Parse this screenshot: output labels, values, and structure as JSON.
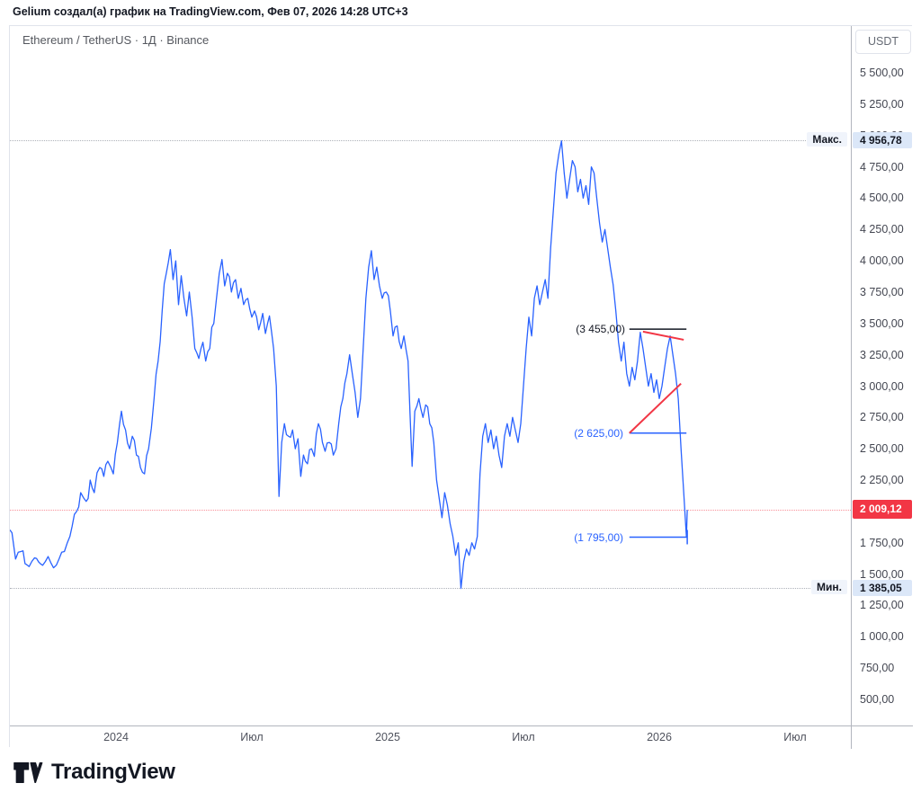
{
  "header": {
    "attribution": "Gelium создал(а) график на TradingView.com, Фев 07, 2026 14:28 UTC+3"
  },
  "chart": {
    "title": "Ethereum / TetherUS · 1Д · Binance",
    "currency_button": "USDT"
  },
  "footer": {
    "logo_text": "TradingView"
  },
  "colors": {
    "series_line": "#2962FF",
    "last_price_badge": "#F23645",
    "highlight_badge_bg": "#dbe7f8",
    "trend_red": "#F23645",
    "level_dark": "#131722"
  },
  "chart_data": {
    "type": "line",
    "title": "Ethereum / TetherUS",
    "interval": "1Д",
    "exchange": "Binance",
    "quote": "USDT",
    "x_axis": {
      "ticks": [
        {
          "label": "2024",
          "t": 2024
        },
        {
          "label": "Июл",
          "t": 2024.5
        },
        {
          "label": "2025",
          "t": 2025
        },
        {
          "label": "Июл",
          "t": 2025.5
        },
        {
          "label": "2026",
          "t": 2026
        },
        {
          "label": "Июл",
          "t": 2026.5
        }
      ]
    },
    "y_axis": {
      "range": [
        500,
        5500
      ],
      "step": 250,
      "ticks": [
        {
          "label": "5 500,00",
          "price": 5500
        },
        {
          "label": "5 250,00",
          "price": 5250
        },
        {
          "label": "5 000,00",
          "price": 5000
        },
        {
          "label": "4 750,00",
          "price": 4750
        },
        {
          "label": "4 500,00",
          "price": 4500
        },
        {
          "label": "4 250,00",
          "price": 4250
        },
        {
          "label": "4 000,00",
          "price": 4000
        },
        {
          "label": "3 750,00",
          "price": 3750
        },
        {
          "label": "3 500,00",
          "price": 3500
        },
        {
          "label": "3 250,00",
          "price": 3250
        },
        {
          "label": "3 000,00",
          "price": 3000
        },
        {
          "label": "2 750,00",
          "price": 2750
        },
        {
          "label": "2 500,00",
          "price": 2500
        },
        {
          "label": "2 250,00",
          "price": 2250
        },
        {
          "label": "2 000,00",
          "price": 2000
        },
        {
          "label": "1 750,00",
          "price": 1750
        },
        {
          "label": "1 500,00",
          "price": 1500
        },
        {
          "label": "1 250,00",
          "price": 1250
        },
        {
          "label": "1 000,00",
          "price": 1000
        },
        {
          "label": "750,00",
          "price": 750
        },
        {
          "label": "500,00",
          "price": 500
        }
      ]
    },
    "markers": {
      "max": {
        "label": "Макс.",
        "value": "4 956,78",
        "price": 4956.78
      },
      "min": {
        "label": "Мин.",
        "value": "1 385,05",
        "price": 1385.05
      },
      "last": {
        "value": "2 009,12",
        "price": 2009.12
      }
    },
    "lines": [
      {
        "name": "resistance-3455",
        "label": "(3 455,00)",
        "color": "#131722",
        "width": 1.5,
        "from": [
          2025.89,
          3455
        ],
        "to": [
          2026.1,
          3455
        ]
      },
      {
        "name": "trend-upper-red",
        "color": "#F23645",
        "width": 2,
        "from": [
          2025.94,
          3435
        ],
        "to": [
          2026.09,
          3370
        ]
      },
      {
        "name": "support-2625",
        "label": "(2 625,00)",
        "color": "#2962FF",
        "width": 1.5,
        "from": [
          2025.89,
          2625
        ],
        "to": [
          2026.1,
          2625
        ]
      },
      {
        "name": "trend-lower-red",
        "color": "#F23645",
        "width": 2,
        "from": [
          2025.89,
          2625
        ],
        "to": [
          2026.08,
          3020
        ]
      },
      {
        "name": "support-1795",
        "label": "(1 795,00)",
        "color": "#2962FF",
        "width": 1.5,
        "from": [
          2025.89,
          1795
        ],
        "to": [
          2026.103,
          1795
        ],
        "end_tick": true
      }
    ],
    "series": [
      [
        2023.61,
        1850
      ],
      [
        2023.617,
        1830
      ],
      [
        2023.63,
        1620
      ],
      [
        2023.65,
        1680
      ],
      [
        2023.68,
        1560
      ],
      [
        2023.7,
        1630
      ],
      [
        2023.73,
        1570
      ],
      [
        2023.75,
        1640
      ],
      [
        2023.77,
        1550
      ],
      [
        2023.79,
        1620
      ],
      [
        2023.81,
        1680
      ],
      [
        2023.83,
        1800
      ],
      [
        2023.855,
        2000
      ],
      [
        2023.87,
        2150
      ],
      [
        2023.89,
        2080
      ],
      [
        2023.905,
        2250
      ],
      [
        2023.92,
        2150
      ],
      [
        2023.94,
        2350
      ],
      [
        2023.955,
        2280
      ],
      [
        2023.97,
        2400
      ],
      [
        2023.99,
        2300
      ],
      [
        2024.005,
        2550
      ],
      [
        2024.02,
        2800
      ],
      [
        2024.035,
        2650
      ],
      [
        2024.05,
        2500
      ],
      [
        2024.06,
        2600
      ],
      [
        2024.075,
        2450
      ],
      [
        2024.09,
        2350
      ],
      [
        2024.105,
        2300
      ],
      [
        2024.12,
        2500
      ],
      [
        2024.14,
        2900
      ],
      [
        2024.155,
        3200
      ],
      [
        2024.17,
        3600
      ],
      [
        2024.185,
        3900
      ],
      [
        2024.2,
        4090
      ],
      [
        2024.21,
        3850
      ],
      [
        2024.22,
        4000
      ],
      [
        2024.23,
        3650
      ],
      [
        2024.24,
        3880
      ],
      [
        2024.25,
        3700
      ],
      [
        2024.26,
        3560
      ],
      [
        2024.27,
        3750
      ],
      [
        2024.28,
        3550
      ],
      [
        2024.29,
        3300
      ],
      [
        2024.305,
        3220
      ],
      [
        2024.32,
        3350
      ],
      [
        2024.33,
        3200
      ],
      [
        2024.345,
        3300
      ],
      [
        2024.36,
        3500
      ],
      [
        2024.37,
        3700
      ],
      [
        2024.38,
        3900
      ],
      [
        2024.39,
        4010
      ],
      [
        2024.4,
        3800
      ],
      [
        2024.41,
        3900
      ],
      [
        2024.425,
        3750
      ],
      [
        2024.44,
        3850
      ],
      [
        2024.45,
        3700
      ],
      [
        2024.46,
        3780
      ],
      [
        2024.47,
        3650
      ],
      [
        2024.485,
        3700
      ],
      [
        2024.5,
        3550
      ],
      [
        2024.51,
        3600
      ],
      [
        2024.525,
        3450
      ],
      [
        2024.54,
        3580
      ],
      [
        2024.55,
        3420
      ],
      [
        2024.565,
        3560
      ],
      [
        2024.58,
        3300
      ],
      [
        2024.59,
        3000
      ],
      [
        2024.6,
        2120
      ],
      [
        2024.61,
        2550
      ],
      [
        2024.62,
        2700
      ],
      [
        2024.635,
        2600
      ],
      [
        2024.65,
        2650
      ],
      [
        2024.66,
        2500
      ],
      [
        2024.67,
        2580
      ],
      [
        2024.68,
        2280
      ],
      [
        2024.69,
        2450
      ],
      [
        2024.705,
        2380
      ],
      [
        2024.72,
        2500
      ],
      [
        2024.73,
        2440
      ],
      [
        2024.745,
        2700
      ],
      [
        2024.76,
        2550
      ],
      [
        2024.77,
        2480
      ],
      [
        2024.785,
        2550
      ],
      [
        2024.8,
        2450
      ],
      [
        2024.81,
        2500
      ],
      [
        2024.82,
        2700
      ],
      [
        2024.835,
        2900
      ],
      [
        2024.85,
        3100
      ],
      [
        2024.86,
        3250
      ],
      [
        2024.87,
        3100
      ],
      [
        2024.88,
        2950
      ],
      [
        2024.89,
        2750
      ],
      [
        2024.9,
        2900
      ],
      [
        2024.91,
        3300
      ],
      [
        2024.92,
        3700
      ],
      [
        2024.93,
        3950
      ],
      [
        2024.94,
        4080
      ],
      [
        2024.95,
        3850
      ],
      [
        2024.96,
        3950
      ],
      [
        2024.97,
        3800
      ],
      [
        2024.98,
        3700
      ],
      [
        2024.995,
        3750
      ],
      [
        2025.01,
        3600
      ],
      [
        2025.02,
        3400
      ],
      [
        2025.035,
        3480
      ],
      [
        2025.05,
        3300
      ],
      [
        2025.06,
        3400
      ],
      [
        2025.075,
        3200
      ],
      [
        2025.09,
        2360
      ],
      [
        2025.1,
        2800
      ],
      [
        2025.115,
        2900
      ],
      [
        2025.13,
        2750
      ],
      [
        2025.14,
        2850
      ],
      [
        2025.155,
        2700
      ],
      [
        2025.17,
        2550
      ],
      [
        2025.18,
        2250
      ],
      [
        2025.19,
        2100
      ],
      [
        2025.2,
        1950
      ],
      [
        2025.21,
        2150
      ],
      [
        2025.22,
        2050
      ],
      [
        2025.23,
        1900
      ],
      [
        2025.24,
        1800
      ],
      [
        2025.25,
        1650
      ],
      [
        2025.26,
        1750
      ],
      [
        2025.27,
        1385.05
      ],
      [
        2025.28,
        1600
      ],
      [
        2025.29,
        1700
      ],
      [
        2025.3,
        1650
      ],
      [
        2025.31,
        1750
      ],
      [
        2025.32,
        1700
      ],
      [
        2025.33,
        1800
      ],
      [
        2025.34,
        2300
      ],
      [
        2025.35,
        2600
      ],
      [
        2025.36,
        2700
      ],
      [
        2025.37,
        2550
      ],
      [
        2025.38,
        2650
      ],
      [
        2025.39,
        2500
      ],
      [
        2025.4,
        2600
      ],
      [
        2025.41,
        2450
      ],
      [
        2025.42,
        2350
      ],
      [
        2025.43,
        2600
      ],
      [
        2025.44,
        2700
      ],
      [
        2025.45,
        2600
      ],
      [
        2025.46,
        2750
      ],
      [
        2025.47,
        2650
      ],
      [
        2025.48,
        2550
      ],
      [
        2025.49,
        2700
      ],
      [
        2025.5,
        3000
      ],
      [
        2025.51,
        3300
      ],
      [
        2025.52,
        3550
      ],
      [
        2025.53,
        3400
      ],
      [
        2025.54,
        3700
      ],
      [
        2025.55,
        3800
      ],
      [
        2025.56,
        3650
      ],
      [
        2025.57,
        3750
      ],
      [
        2025.58,
        3850
      ],
      [
        2025.59,
        3700
      ],
      [
        2025.6,
        4100
      ],
      [
        2025.61,
        4400
      ],
      [
        2025.62,
        4700
      ],
      [
        2025.63,
        4850
      ],
      [
        2025.64,
        4956.78
      ],
      [
        2025.65,
        4700
      ],
      [
        2025.66,
        4500
      ],
      [
        2025.67,
        4650
      ],
      [
        2025.68,
        4800
      ],
      [
        2025.69,
        4750
      ],
      [
        2025.7,
        4550
      ],
      [
        2025.71,
        4650
      ],
      [
        2025.72,
        4500
      ],
      [
        2025.73,
        4600
      ],
      [
        2025.74,
        4450
      ],
      [
        2025.75,
        4750
      ],
      [
        2025.76,
        4700
      ],
      [
        2025.77,
        4500
      ],
      [
        2025.78,
        4300
      ],
      [
        2025.79,
        4150
      ],
      [
        2025.8,
        4250
      ],
      [
        2025.81,
        4100
      ],
      [
        2025.82,
        3950
      ],
      [
        2025.83,
        3810
      ],
      [
        2025.84,
        3600
      ],
      [
        2025.85,
        3350
      ],
      [
        2025.86,
        3200
      ],
      [
        2025.87,
        3350
      ],
      [
        2025.88,
        3100
      ],
      [
        2025.89,
        3000
      ],
      [
        2025.9,
        3150
      ],
      [
        2025.91,
        3050
      ],
      [
        2025.92,
        3200
      ],
      [
        2025.93,
        3430
      ],
      [
        2025.94,
        3300
      ],
      [
        2025.95,
        3150
      ],
      [
        2025.96,
        3000
      ],
      [
        2025.97,
        3100
      ],
      [
        2025.98,
        2950
      ],
      [
        2025.99,
        3050
      ],
      [
        2026.0,
        2900
      ],
      [
        2026.01,
        3000
      ],
      [
        2026.02,
        3150
      ],
      [
        2026.03,
        3300
      ],
      [
        2026.04,
        3400
      ],
      [
        2026.05,
        3250
      ],
      [
        2026.06,
        3100
      ],
      [
        2026.07,
        2900
      ],
      [
        2026.08,
        2500
      ],
      [
        2026.09,
        2150
      ],
      [
        2026.097,
        1900
      ],
      [
        2026.1,
        1795
      ],
      [
        2026.103,
        2009.12
      ]
    ]
  }
}
